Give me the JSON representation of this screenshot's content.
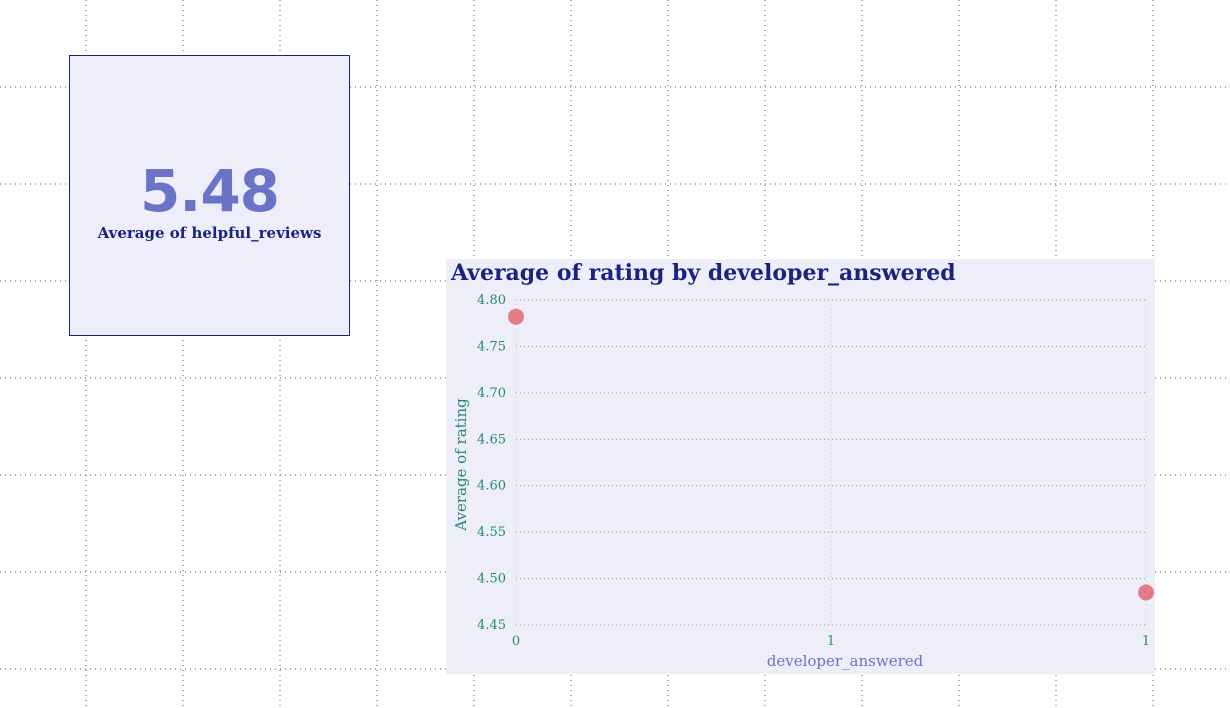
{
  "kpi_card": {
    "value": "5.48",
    "label": "Average of helpful_reviews"
  },
  "chart_data": {
    "type": "scatter",
    "title": "Average of rating by developer_answered",
    "xlabel": "developer_answered",
    "ylabel": "Average of rating",
    "x_ticks": [
      "0",
      "1",
      "1"
    ],
    "y_ticks": [
      "4.80",
      "4.75",
      "4.70",
      "4.65",
      "4.60",
      "4.55",
      "4.50",
      "4.45"
    ],
    "xlim": [
      0,
      1
    ],
    "ylim": [
      4.45,
      4.8
    ],
    "points": [
      {
        "x": 0,
        "y": 4.782
      },
      {
        "x": 1,
        "y": 4.485
      }
    ],
    "grid": true,
    "colors": {
      "marker": "#e0707a",
      "grid": "#7f8fa6"
    }
  }
}
